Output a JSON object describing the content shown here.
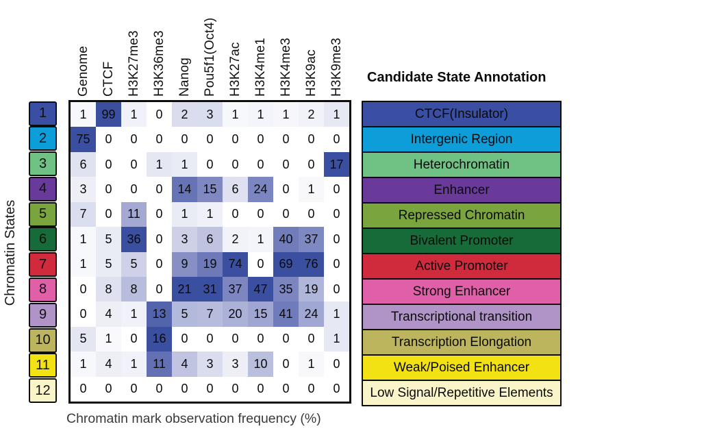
{
  "chart_data": {
    "type": "heatmap",
    "title": "",
    "xlabel": "Chromatin mark observation frequency (%)",
    "ylabel": "Chromatin States",
    "legend_title": "Candidate State Annotation",
    "columns": [
      "Genome",
      "CTCF",
      "H3K27me3",
      "H3K36me3",
      "Nanog",
      "Pou5f1(Oct4)",
      "H3K27ac",
      "H3K4me1",
      "H3K4me3",
      "H3K9ac",
      "H3K9me3"
    ],
    "rows": [
      {
        "state": "1",
        "annotation": "CTCF(Insulator)",
        "color": "#3a4fa3",
        "values": [
          1,
          99,
          1,
          0,
          2,
          3,
          1,
          1,
          1,
          2,
          1
        ]
      },
      {
        "state": "2",
        "annotation": "Intergenic Region",
        "color": "#0d9dd9",
        "values": [
          75,
          0,
          0,
          0,
          0,
          0,
          0,
          0,
          0,
          0,
          0
        ]
      },
      {
        "state": "3",
        "annotation": "Heterochromatin",
        "color": "#6fc284",
        "values": [
          6,
          0,
          0,
          1,
          1,
          0,
          0,
          0,
          0,
          0,
          17
        ]
      },
      {
        "state": "4",
        "annotation": "Enhancer",
        "color": "#6a3a9b",
        "values": [
          3,
          0,
          0,
          0,
          14,
          15,
          6,
          24,
          0,
          1,
          0
        ]
      },
      {
        "state": "5",
        "annotation": "Repressed Chromatin",
        "color": "#7aa43e",
        "values": [
          7,
          0,
          11,
          0,
          1,
          1,
          0,
          0,
          0,
          0,
          0
        ]
      },
      {
        "state": "6",
        "annotation": "Bivalent Promoter",
        "color": "#176b39",
        "values": [
          1,
          5,
          36,
          0,
          3,
          6,
          2,
          1,
          40,
          37,
          0
        ]
      },
      {
        "state": "7",
        "annotation": "Active Promoter",
        "color": "#d02b3d",
        "values": [
          1,
          5,
          5,
          0,
          9,
          19,
          74,
          0,
          69,
          76,
          0
        ]
      },
      {
        "state": "8",
        "annotation": "Strong Enhancer",
        "color": "#df5fa8",
        "values": [
          0,
          8,
          8,
          0,
          21,
          31,
          37,
          47,
          35,
          19,
          0
        ]
      },
      {
        "state": "9",
        "annotation": "Transcriptional transition",
        "color": "#b094c8",
        "values": [
          0,
          4,
          1,
          13,
          5,
          7,
          20,
          15,
          41,
          24,
          1
        ]
      },
      {
        "state": "10",
        "annotation": "Transcription Elongation",
        "color": "#bdb55e",
        "values": [
          5,
          1,
          0,
          16,
          0,
          0,
          0,
          0,
          0,
          0,
          1
        ]
      },
      {
        "state": "11",
        "annotation": "Weak/Poised Enhancer",
        "color": "#f2e213",
        "values": [
          1,
          4,
          1,
          11,
          4,
          3,
          3,
          10,
          0,
          1,
          0
        ]
      },
      {
        "state": "12",
        "annotation": "Low Signal/Repetitive Elements",
        "color": "#faf4c9",
        "values": [
          0,
          0,
          0,
          0,
          0,
          0,
          0,
          0,
          0,
          0,
          0
        ]
      }
    ],
    "layout": {
      "legend_position": "right",
      "grid": false,
      "normalize": "per-column-max"
    },
    "colormap": {
      "low": "#ffffff",
      "mid": "#8890c6",
      "high": "#3b4fa0"
    }
  }
}
